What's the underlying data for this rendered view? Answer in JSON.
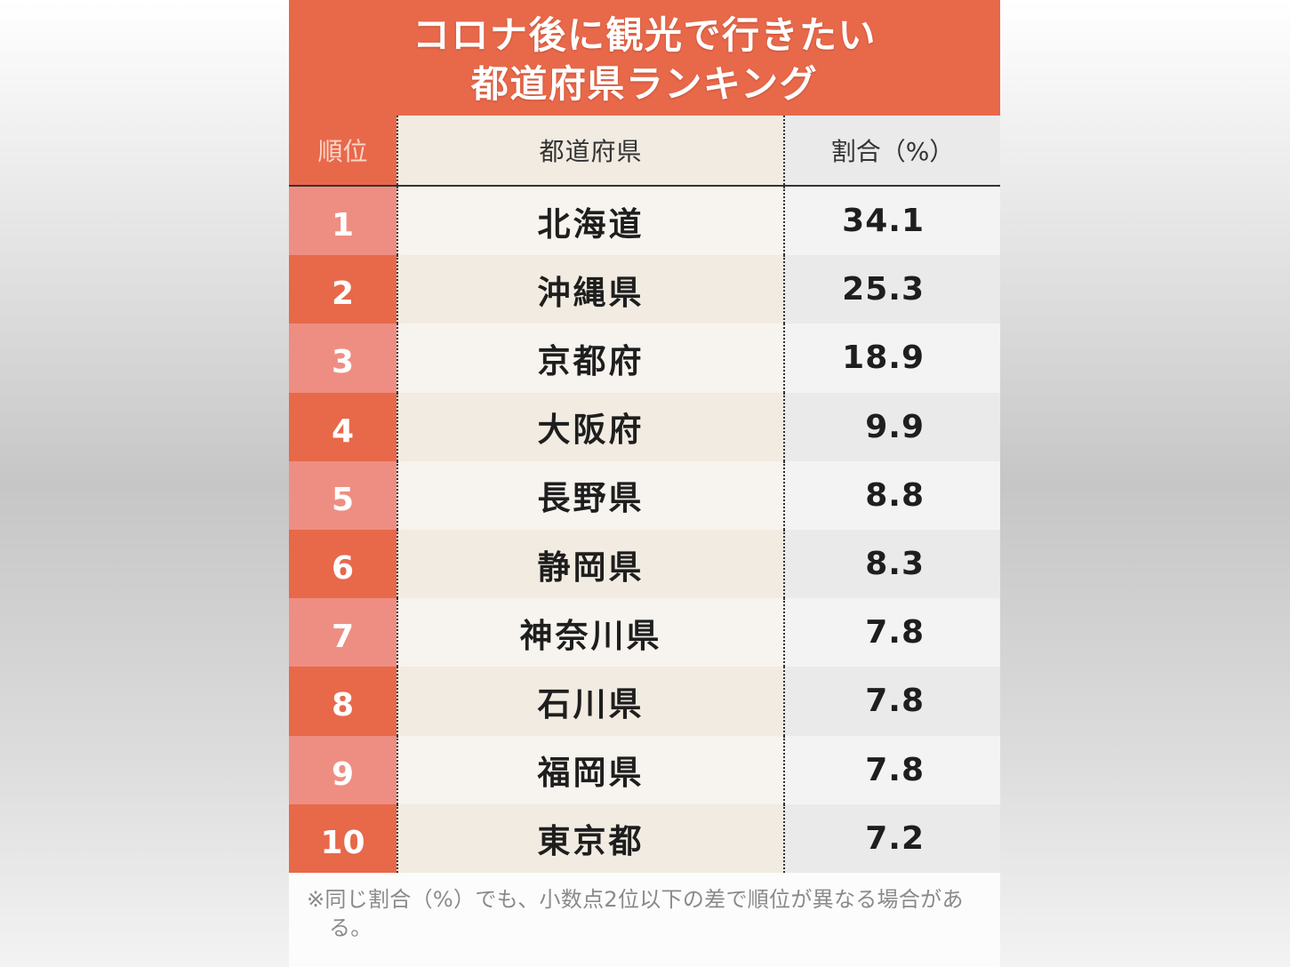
{
  "colors": {
    "accent": "#E8684A",
    "rank_header_text": "#FCD6CA",
    "rank_odd": "#EE8E82",
    "rank_even": "#E8684A",
    "name_odd": "#F7F3EE",
    "name_even": "#F1EBE1",
    "value_odd": "#F3F3F3",
    "value_even": "#EAEAEA"
  },
  "chart_data": {
    "type": "table",
    "title_lines": [
      "コロナ後に観光で行きたい",
      "都道府県ランキング"
    ],
    "columns": [
      "順位",
      "都道府県",
      "割合（%）"
    ],
    "rows": [
      {
        "rank": 1,
        "prefecture": "北海道",
        "percentage": 34.1
      },
      {
        "rank": 2,
        "prefecture": "沖縄県",
        "percentage": 25.3
      },
      {
        "rank": 3,
        "prefecture": "京都府",
        "percentage": 18.9
      },
      {
        "rank": 4,
        "prefecture": "大阪府",
        "percentage": 9.9
      },
      {
        "rank": 5,
        "prefecture": "長野県",
        "percentage": 8.8
      },
      {
        "rank": 6,
        "prefecture": "静岡県",
        "percentage": 8.3
      },
      {
        "rank": 7,
        "prefecture": "神奈川県",
        "percentage": 7.8
      },
      {
        "rank": 8,
        "prefecture": "石川県",
        "percentage": 7.8
      },
      {
        "rank": 9,
        "prefecture": "福岡県",
        "percentage": 7.8
      },
      {
        "rank": 10,
        "prefecture": "東京都",
        "percentage": 7.2
      }
    ]
  },
  "note": "※同じ割合（%）でも、小数点2位以下の差で順位が異なる場合がある。"
}
